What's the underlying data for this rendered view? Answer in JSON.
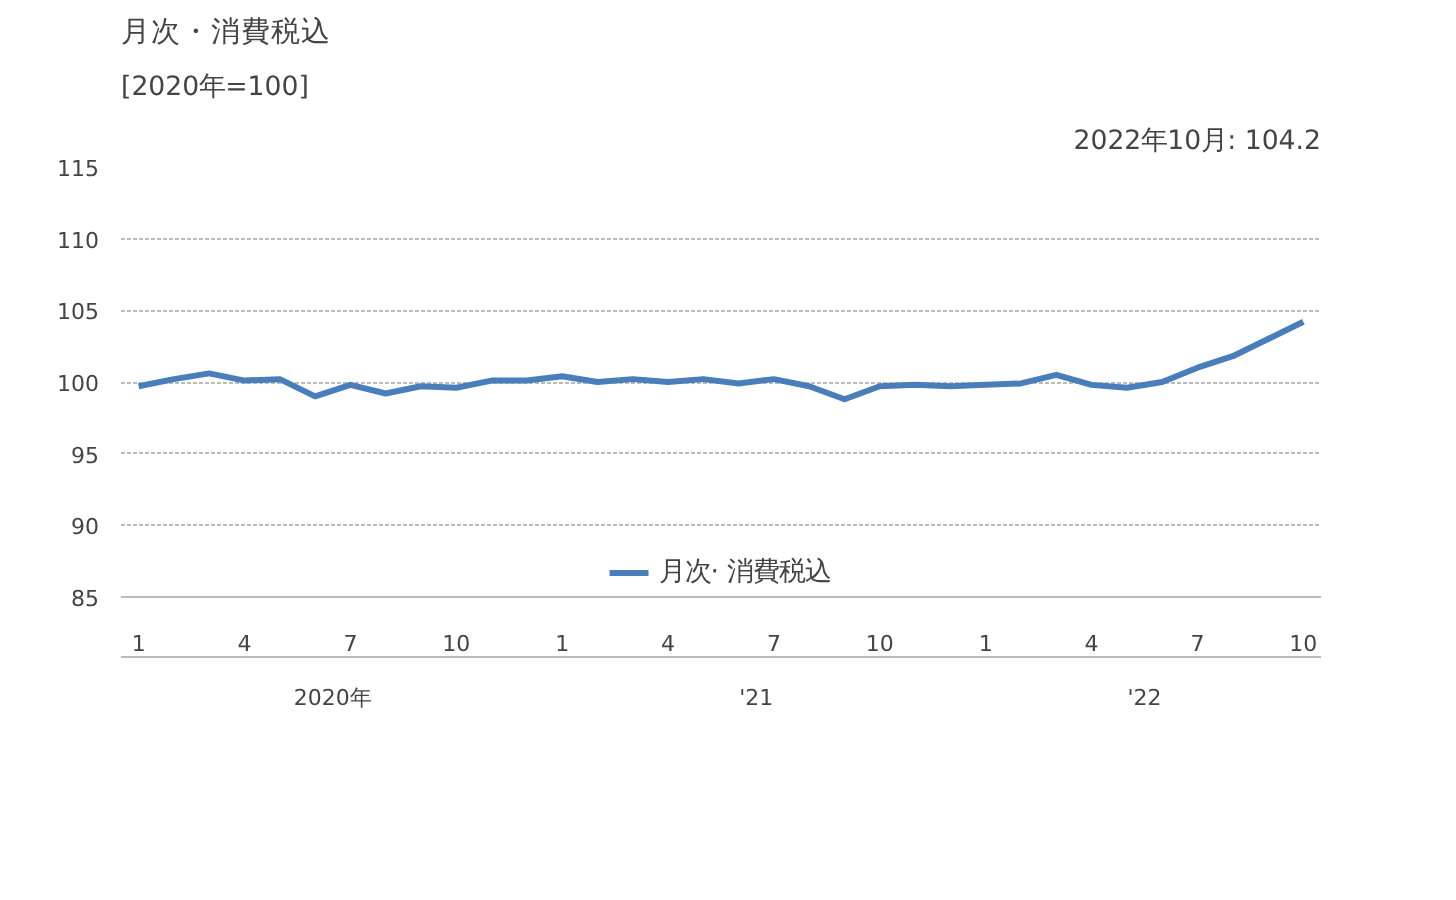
{
  "chart_data": {
    "type": "line",
    "title": "月次・消費税込",
    "ylabel": "[2020年=100]",
    "annotations": [
      "2020年",
      "'21",
      "'22",
      "2022年10月: 104.2"
    ],
    "categories": [
      "1",
      null,
      null,
      "4",
      null,
      null,
      "7",
      null,
      null,
      "10",
      null,
      null,
      "1",
      null,
      null,
      "4",
      null,
      null,
      "7",
      null,
      null,
      "10",
      null,
      null,
      "1",
      null,
      null,
      "4",
      null,
      null,
      "7",
      null,
      null,
      "10"
    ],
    "series": [
      {
        "name": "月次· 消費税込",
        "color": "#4a7ebb",
        "values": [
          99.7,
          100.2,
          100.6,
          100.1,
          100.2,
          99.0,
          99.8,
          99.2,
          99.7,
          99.6,
          100.1,
          100.1,
          100.4,
          100.0,
          100.2,
          100.0,
          100.2,
          99.9,
          100.2,
          99.7,
          98.8,
          99.7,
          99.8,
          99.7,
          99.8,
          99.9,
          100.5,
          99.8,
          99.6,
          100.0,
          101.0,
          101.8,
          103.0,
          104.2
        ]
      }
    ],
    "ylim": [
      85,
      115
    ],
    "yticks": [
      85,
      90,
      95,
      100,
      105,
      110,
      115
    ],
    "grid": "y",
    "legend": "bottom",
    "marker": "none",
    "line_style": "solid"
  }
}
